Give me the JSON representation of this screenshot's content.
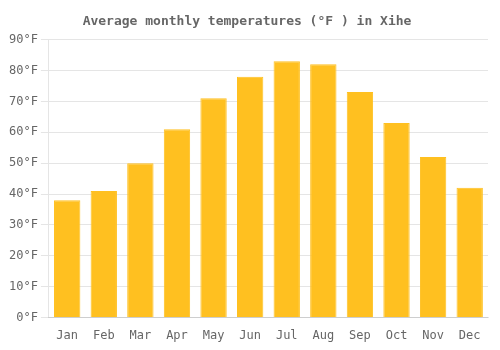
{
  "chart_data": {
    "type": "bar",
    "title": "Average monthly temperatures (°F ) in Xihe",
    "categories": [
      "Jan",
      "Feb",
      "Mar",
      "Apr",
      "May",
      "Jun",
      "Jul",
      "Aug",
      "Sep",
      "Oct",
      "Nov",
      "Dec"
    ],
    "values": [
      38,
      41,
      50,
      61,
      71,
      78,
      83,
      82,
      73,
      63,
      52,
      42
    ],
    "color": "#FFC020",
    "ylim": [
      0,
      90
    ],
    "yticks": [
      {
        "value": 0,
        "label": "0°F"
      },
      {
        "value": 10,
        "label": "10°F"
      },
      {
        "value": 20,
        "label": "20°F"
      },
      {
        "value": 30,
        "label": "30°F"
      },
      {
        "value": 40,
        "label": "40°F"
      },
      {
        "value": 50,
        "label": "50°F"
      },
      {
        "value": 60,
        "label": "60°F"
      },
      {
        "value": 70,
        "label": "70°F"
      },
      {
        "value": 80,
        "label": "80°F"
      },
      {
        "value": 90,
        "label": "90°F"
      }
    ],
    "grid": true
  }
}
